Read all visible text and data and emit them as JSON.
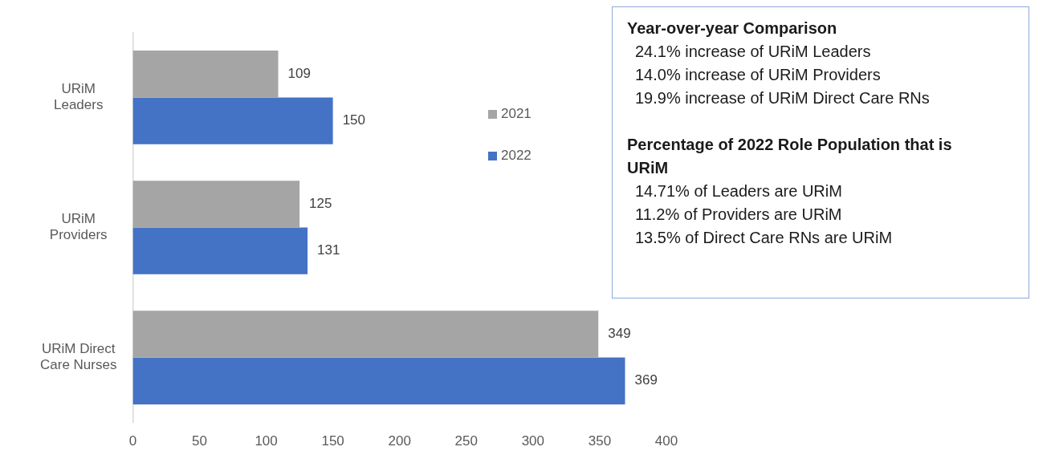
{
  "chart_data": {
    "type": "bar",
    "orientation": "horizontal",
    "categories": [
      "URiM\nLeaders",
      "URiM\nProviders",
      "URiM Direct\nCare Nurses"
    ],
    "series": [
      {
        "name": "2021",
        "color": "#a5a5a5",
        "values": [
          109,
          125,
          349
        ]
      },
      {
        "name": "2022",
        "color": "#4472c4",
        "values": [
          150,
          131,
          369
        ]
      }
    ],
    "xlim": [
      0,
      400
    ],
    "xticks": [
      0,
      50,
      100,
      150,
      200,
      250,
      300,
      350,
      400
    ],
    "grid": false,
    "legend": "right",
    "data_labels": true,
    "annotations": [
      "Year-over-year Comparison",
      "24.1% increase of URiM Leaders",
      "14.0% increase of URiM Providers",
      "19.9% increase of URiM Direct Care RNs",
      "Percentage of 2022 Role Population that is URiM",
      "14.71% of Leaders are URiM",
      "11.2% of Providers are URiM",
      "13.5% of Direct Care RNs are URiM"
    ]
  }
}
